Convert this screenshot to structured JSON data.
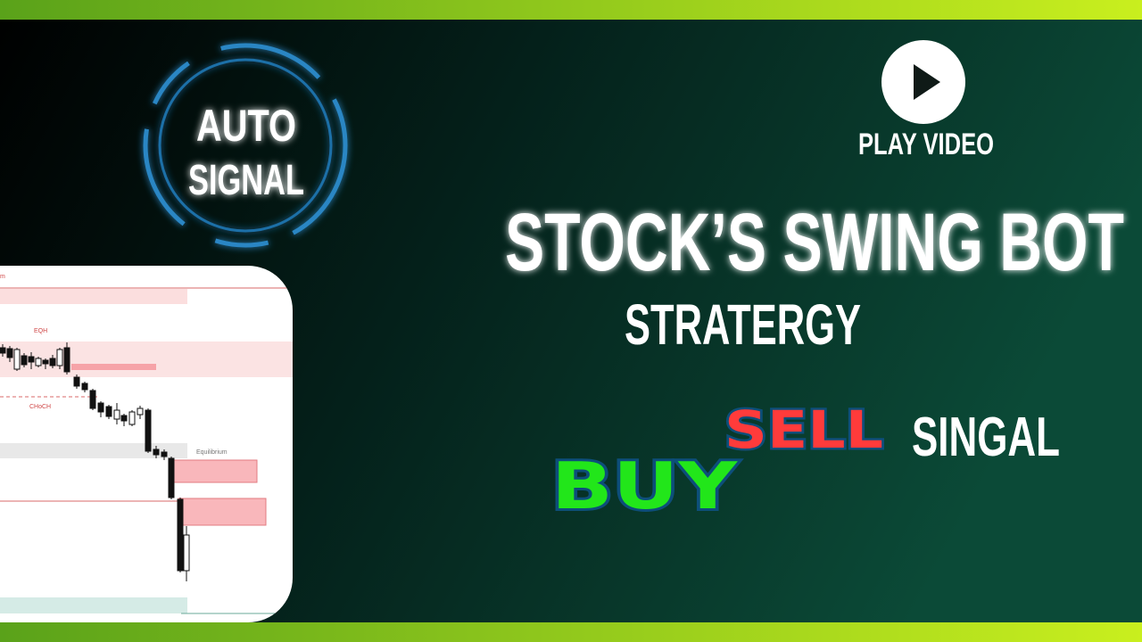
{
  "badge": {
    "line1": "AUTO",
    "line2": "SIGNAL"
  },
  "play_button": {
    "label": "PLAY VIDEO"
  },
  "title": "STOCK’S SWING BOT",
  "subtitle": "STRATERGY",
  "signal": {
    "sell": "SELL",
    "buy": "BUY",
    "word": "SINGAL"
  },
  "chart_preview": {
    "labels": [
      "m",
      "EQH",
      "CHoCH",
      "Equilibrium"
    ]
  }
}
